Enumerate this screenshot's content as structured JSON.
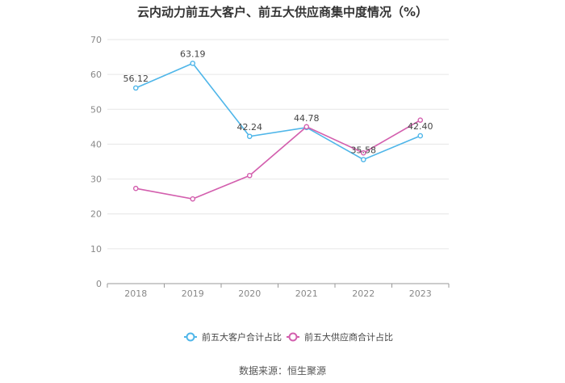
{
  "chart_data": {
    "type": "line",
    "title": "云内动力前五大客户、前五大供应商集中度情况（%）",
    "categories": [
      "2018",
      "2019",
      "2020",
      "2021",
      "2022",
      "2023"
    ],
    "series": [
      {
        "name": "前五大客户合计占比",
        "color": "#4fb6e9",
        "values": [
          56.12,
          63.19,
          42.24,
          44.78,
          35.58,
          42.4
        ],
        "labels": [
          "56.12",
          "63.19",
          "42.24",
          "44.78",
          "35.58",
          "42.40"
        ]
      },
      {
        "name": "前五大供应商合计占比",
        "color": "#d35fae",
        "values": [
          27.3,
          24.3,
          31.0,
          45.0,
          37.5,
          46.9
        ],
        "labels": []
      }
    ],
    "ylim": [
      0,
      70
    ],
    "yticks": [
      "0",
      "10",
      "20",
      "30",
      "40",
      "50",
      "60",
      "70"
    ],
    "grid": true,
    "legend": "bottom-center",
    "xlabel": "",
    "ylabel": ""
  },
  "source": "数据来源：恒生聚源"
}
